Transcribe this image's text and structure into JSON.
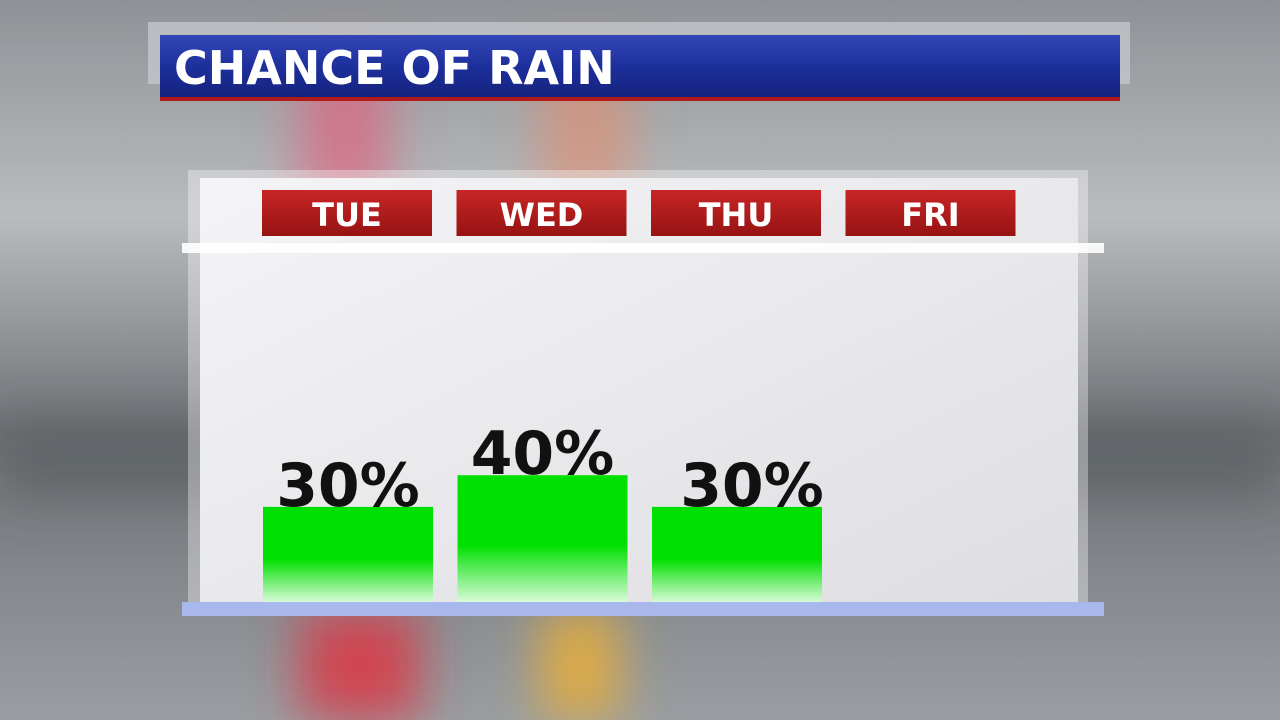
{
  "chart_data": {
    "type": "bar",
    "title": "CHANCE OF RAIN",
    "categories": [
      "TUE",
      "WED",
      "THU",
      "FRI"
    ],
    "values": [
      30,
      40,
      30,
      null
    ],
    "value_labels": [
      "30%",
      "40%",
      "30%",
      null
    ],
    "color": "#00e000",
    "header_color": "#b51a1a",
    "ylim": [
      0,
      100
    ]
  }
}
